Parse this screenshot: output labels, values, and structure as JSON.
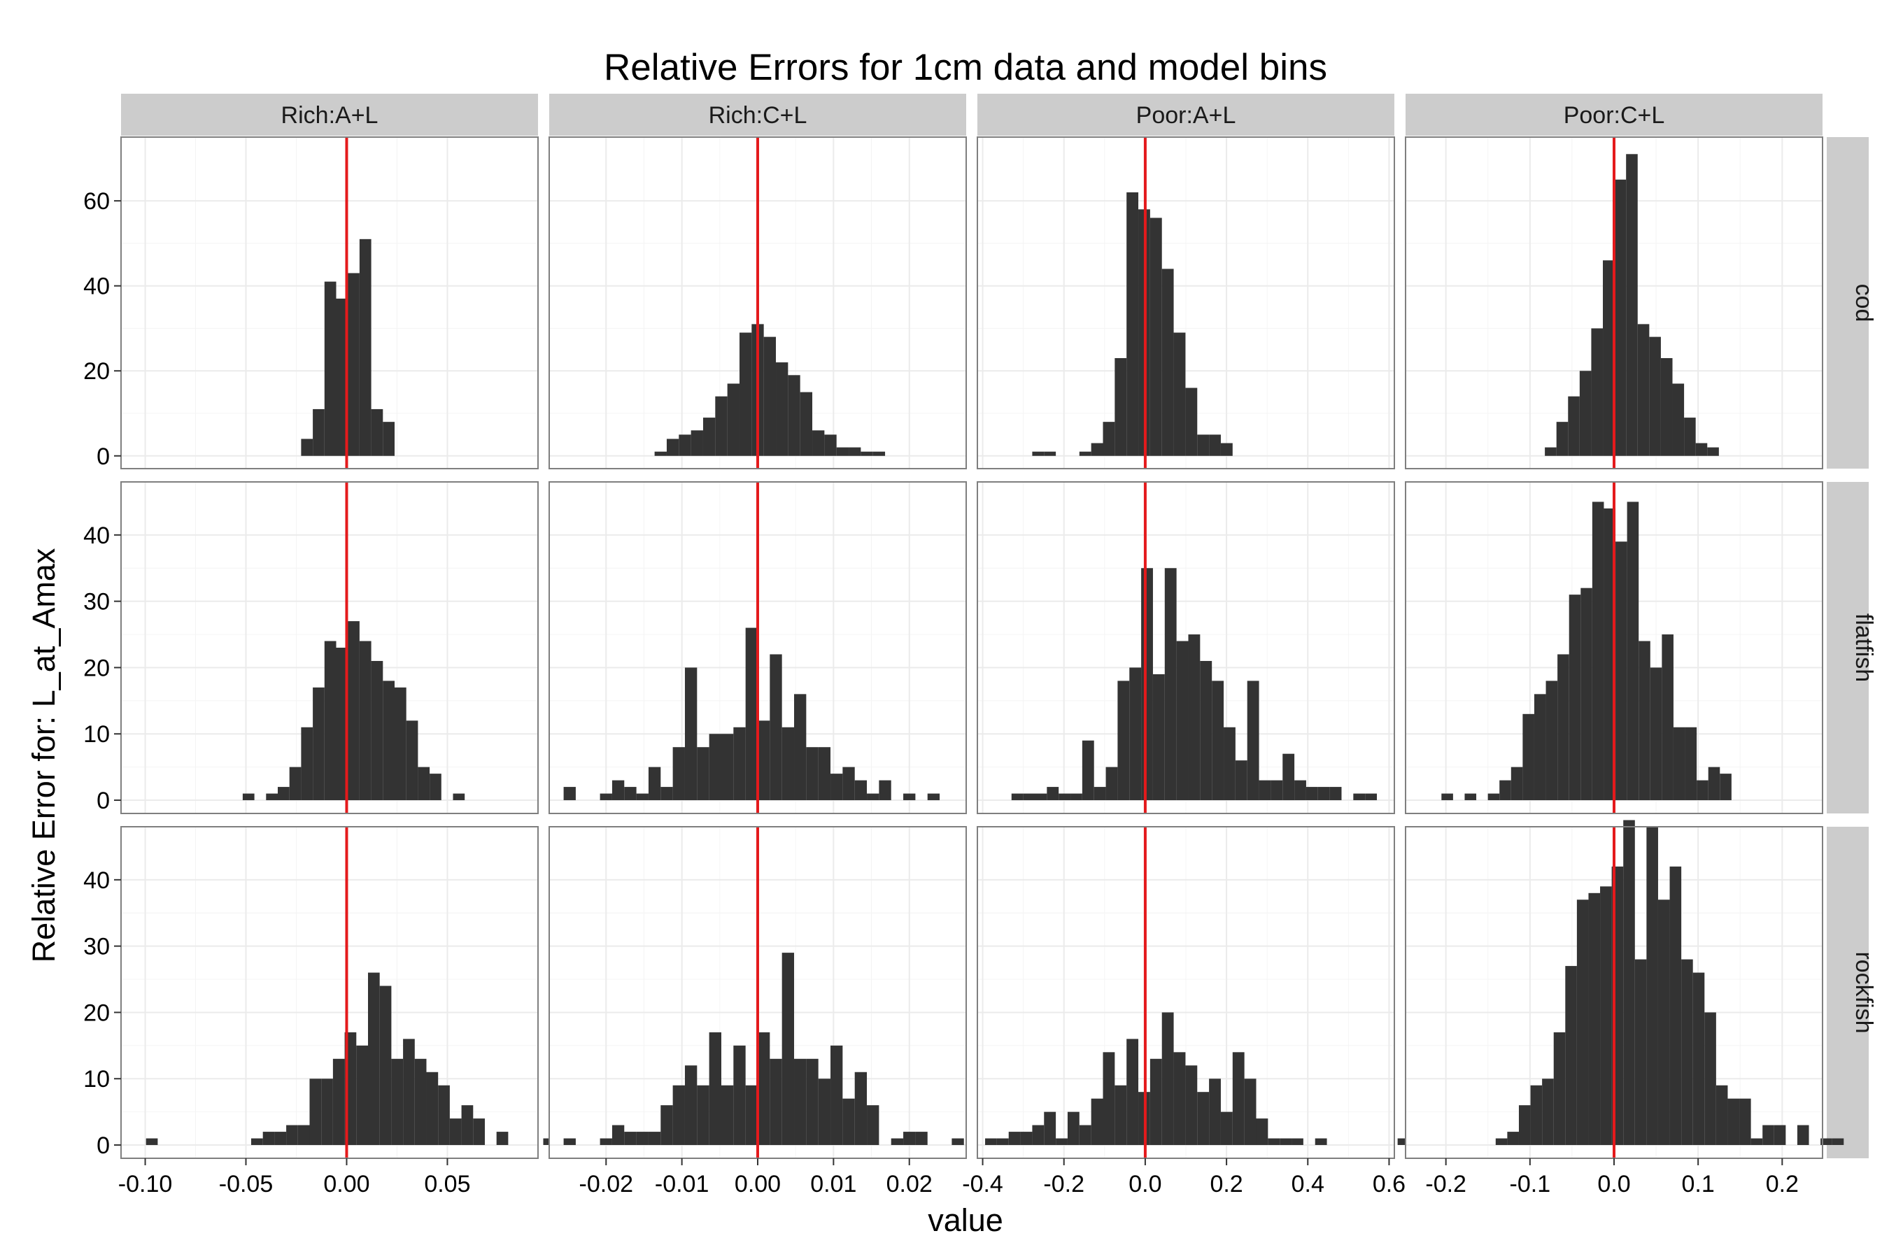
{
  "chart_data": {
    "type": "bar",
    "title": "Relative Errors for 1cm data and model bins",
    "xlabel": "value",
    "ylabel": "Relative Error for: L_at_Amax",
    "column_labels": [
      "Rich:A+L",
      "Rich:C+L",
      "Poor:A+L",
      "Poor:C+L"
    ],
    "row_labels": [
      "cod",
      "flatfish",
      "rockfish"
    ],
    "reference_line": {
      "x": 0,
      "color": "#e41a1c"
    },
    "colors": {
      "bar": "#333333",
      "strip": "#cccccc",
      "panel_border": "#7f7f7f",
      "grid": "#ebebeb"
    },
    "column_axes": [
      {
        "xlim": [
          -0.112,
          0.095
        ],
        "ticks": [
          -0.1,
          -0.05,
          0.0,
          0.05
        ],
        "tick_labels": [
          "-0.10",
          "-0.05",
          "0.00",
          "0.05"
        ],
        "bin_width": 0.0058
      },
      {
        "xlim": [
          -0.0275,
          0.0275
        ],
        "ticks": [
          -0.02,
          -0.01,
          0.0,
          0.01,
          0.02
        ],
        "tick_labels": [
          "-0.02",
          "-0.01",
          "0.00",
          "0.01",
          "0.02"
        ],
        "bin_width": 0.0016
      },
      {
        "xlim": [
          -0.413,
          0.613
        ],
        "ticks": [
          -0.4,
          -0.2,
          0.0,
          0.2,
          0.4,
          0.6
        ],
        "tick_labels": [
          "-0.4",
          "-0.2",
          "0.0",
          "0.2",
          "0.4",
          "0.6"
        ],
        "bin_width": 0.029
      },
      {
        "xlim": [
          -0.248,
          0.248
        ],
        "ticks": [
          -0.2,
          -0.1,
          0.0,
          0.1,
          0.2
        ],
        "tick_labels": [
          "-0.2",
          "-0.1",
          "0.0",
          "0.1",
          "0.2"
        ],
        "bin_width": 0.0138
      }
    ],
    "row_axes": [
      {
        "ylim": [
          -3,
          75
        ],
        "ticks": [
          0,
          20,
          40,
          60
        ],
        "tick_labels": [
          "0",
          "20",
          "40",
          "60"
        ]
      },
      {
        "ylim": [
          -2,
          48
        ],
        "ticks": [
          0,
          10,
          20,
          30,
          40
        ],
        "tick_labels": [
          "0",
          "10",
          "20",
          "30",
          "40"
        ]
      },
      {
        "ylim": [
          -2,
          48
        ],
        "ticks": [
          0,
          10,
          20,
          30,
          40
        ],
        "tick_labels": [
          "0",
          "10",
          "20",
          "30",
          "40"
        ]
      }
    ],
    "panels": [
      [
        {
          "row": "cod",
          "col": "Rich:A+L",
          "bin_start": -0.0226,
          "counts": [
            4,
            11,
            41,
            37,
            43,
            51,
            11,
            8
          ]
        },
        {
          "row": "cod",
          "col": "Rich:C+L",
          "bin_start": -0.0136,
          "counts": [
            1,
            4,
            5,
            6,
            9,
            14,
            17,
            29,
            31,
            28,
            22,
            19,
            15,
            6,
            5,
            2,
            2,
            1,
            1
          ]
        },
        {
          "row": "cod",
          "col": "Poor:A+L",
          "bin_start": -0.278,
          "counts": [
            1,
            1,
            0,
            0,
            1,
            3,
            8,
            23,
            62,
            58,
            56,
            44,
            29,
            16,
            5,
            5,
            3
          ]
        },
        {
          "row": "cod",
          "col": "Poor:C+L",
          "bin_start": -0.0823,
          "counts": [
            2,
            8,
            14,
            20,
            30,
            46,
            65,
            71,
            31,
            28,
            23,
            17,
            9,
            3,
            2
          ]
        }
      ],
      [
        {
          "row": "flatfish",
          "col": "Rich:A+L",
          "bin_start": -0.0516,
          "counts": [
            1,
            0,
            1,
            2,
            5,
            11,
            17,
            24,
            23,
            27,
            24,
            21,
            18,
            17,
            12,
            5,
            4,
            0,
            1
          ]
        },
        {
          "row": "flatfish",
          "col": "Rich:C+L",
          "bin_start": -0.0256,
          "counts": [
            2,
            0,
            0,
            1,
            3,
            2,
            1,
            5,
            2,
            8,
            20,
            8,
            10,
            10,
            11,
            26,
            12,
            22,
            11,
            16,
            8,
            8,
            4,
            5,
            3,
            1,
            3,
            0,
            1,
            0,
            1
          ]
        },
        {
          "row": "flatfish",
          "col": "Poor:A+L",
          "bin_start": -0.329,
          "counts": [
            1,
            1,
            1,
            2,
            1,
            1,
            9,
            2,
            5,
            18,
            20,
            35,
            19,
            35,
            24,
            25,
            21,
            18,
            11,
            6,
            18,
            3,
            3,
            7,
            3,
            2,
            2,
            2,
            0,
            1,
            1
          ]
        },
        {
          "row": "flatfish",
          "col": "Poor:C+L",
          "bin_start": -0.2053,
          "counts": [
            1,
            0,
            1,
            0,
            1,
            3,
            5,
            13,
            16,
            18,
            22,
            31,
            32,
            45,
            44,
            39,
            45,
            24,
            20,
            25,
            11,
            11,
            3,
            5,
            4
          ]
        }
      ],
      [
        {
          "row": "rockfish",
          "col": "Rich:A+L",
          "bin_start": -0.0996,
          "counts": [
            1,
            0,
            0,
            0,
            0,
            0,
            0,
            0,
            0,
            1,
            2,
            2,
            3,
            3,
            10,
            10,
            13,
            17,
            15,
            26,
            24,
            13,
            16,
            13,
            11,
            9,
            4,
            6,
            4,
            0,
            2,
            0,
            0,
            0,
            1
          ]
        },
        {
          "row": "rockfish",
          "col": "Rich:C+L",
          "bin_start": -0.0256,
          "counts": [
            1,
            0,
            0,
            1,
            3,
            2,
            2,
            2,
            6,
            9,
            12,
            9,
            17,
            9,
            15,
            9,
            17,
            13,
            29,
            13,
            13,
            10,
            15,
            7,
            11,
            6,
            0,
            1,
            2,
            2,
            0,
            0,
            1
          ]
        },
        {
          "row": "rockfish",
          "col": "Poor:A+L",
          "bin_start": -0.394,
          "counts": [
            1,
            1,
            2,
            2,
            3,
            5,
            1,
            5,
            3,
            7,
            14,
            9,
            16,
            8,
            13,
            20,
            14,
            12,
            8,
            10,
            5,
            14,
            10,
            4,
            1,
            1,
            1,
            0,
            1,
            0,
            0,
            0,
            0,
            0,
            0,
            1
          ]
        },
        {
          "row": "rockfish",
          "col": "Poor:C+L",
          "bin_start": -0.1408,
          "counts": [
            1,
            2,
            6,
            9,
            10,
            17,
            27,
            37,
            38,
            39,
            42,
            49,
            28,
            48,
            37,
            42,
            28,
            26,
            20,
            9,
            7,
            7,
            1,
            3,
            3,
            0,
            3,
            0,
            1,
            1
          ]
        }
      ]
    ]
  }
}
